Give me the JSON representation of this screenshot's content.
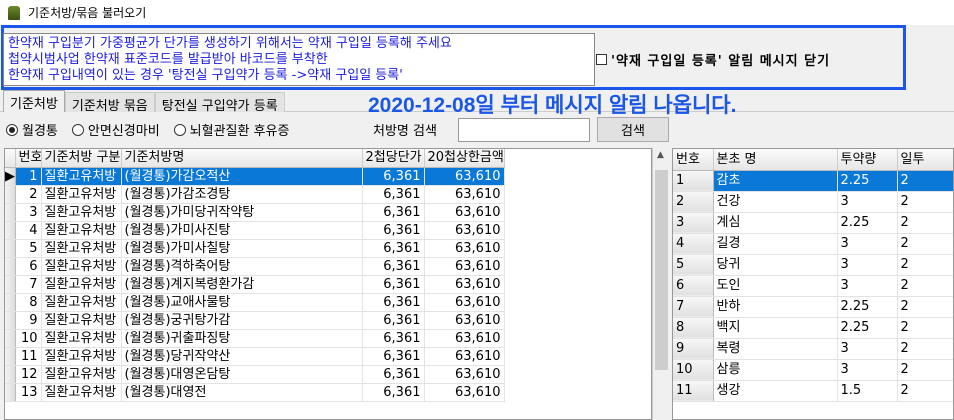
{
  "window": {
    "title": "기준처방/묶음 불러오기"
  },
  "notice": {
    "lines": [
      "한약재 구입분기 가중평균가 단가를 생성하기 위해서는 약재 구입일 등록해 주세요",
      "첩약시범사업 한약재 표준코드를 발급받아 바코드를 부착한",
      "한약재 구입내역이 있는 경우 '탕전실 구입약가 등록 ->약재 구입일 등록'"
    ],
    "close_checkbox_label": "'약재 구입일 등록' 알림 메시지 닫기",
    "close_checked": false,
    "accent_color": "#1a56e8"
  },
  "tabs": [
    {
      "label": "기준처방",
      "active": true
    },
    {
      "label": "기준처방 묶음",
      "active": false
    },
    {
      "label": "탕전실 구입약가 등록",
      "active": false
    }
  ],
  "banner": "2020-12-08일 부터 메시지 알림 나옵니다.",
  "filters": {
    "options": [
      {
        "label": "월경통",
        "selected": true
      },
      {
        "label": "안면신경마비",
        "selected": false
      },
      {
        "label": "뇌혈관질환 후유증",
        "selected": false
      }
    ],
    "search_label": "처방명 검색",
    "search_value": "",
    "search_button": "검색"
  },
  "left_grid": {
    "columns": [
      "번호",
      "기준처방 구분",
      "기준처방명",
      "2첩당단가",
      "20첩상한금액"
    ],
    "rows": [
      [
        "1",
        "질환고유처방",
        "(월경통)가감오적산",
        "6,361",
        "63,610"
      ],
      [
        "2",
        "질환고유처방",
        "(월경통)가감조경탕",
        "6,361",
        "63,610"
      ],
      [
        "3",
        "질환고유처방",
        "(월경통)가미당귀작약탕",
        "6,361",
        "63,610"
      ],
      [
        "4",
        "질환고유처방",
        "(월경통)가미사진탕",
        "6,361",
        "63,610"
      ],
      [
        "5",
        "질환고유처방",
        "(월경통)가미사칠탕",
        "6,361",
        "63,610"
      ],
      [
        "6",
        "질환고유처방",
        "(월경통)격하축어탕",
        "6,361",
        "63,610"
      ],
      [
        "7",
        "질환고유처방",
        "(월경통)계지복령환가감",
        "6,361",
        "63,610"
      ],
      [
        "8",
        "질환고유처방",
        "(월경통)교애사물탕",
        "6,361",
        "63,610"
      ],
      [
        "9",
        "질환고유처방",
        "(월경통)궁귀탕가감",
        "6,361",
        "63,610"
      ],
      [
        "10",
        "질환고유처방",
        "(월경통)귀출파징탕",
        "6,361",
        "63,610"
      ],
      [
        "11",
        "질환고유처방",
        "(월경통)당귀작약산",
        "6,361",
        "63,610"
      ],
      [
        "12",
        "질환고유처방",
        "(월경통)대영온담탕",
        "6,361",
        "63,610"
      ],
      [
        "13",
        "질환고유처방",
        "(월경통)대영전",
        "6,361",
        "63,610"
      ]
    ],
    "selected_row": 0
  },
  "right_grid": {
    "columns": [
      "번호",
      "본초 명",
      "투약량",
      "일투"
    ],
    "rows": [
      [
        "1",
        "감초",
        "2.25",
        "2"
      ],
      [
        "2",
        "건강",
        "3",
        "2"
      ],
      [
        "3",
        "계심",
        "2.25",
        "2"
      ],
      [
        "4",
        "길경",
        "3",
        "2"
      ],
      [
        "5",
        "당귀",
        "3",
        "2"
      ],
      [
        "6",
        "도인",
        "3",
        "2"
      ],
      [
        "7",
        "반하",
        "2.25",
        "2"
      ],
      [
        "8",
        "백지",
        "2.25",
        "2"
      ],
      [
        "9",
        "복령",
        "3",
        "2"
      ],
      [
        "10",
        "삼릉",
        "3",
        "2"
      ],
      [
        "11",
        "생강",
        "1.5",
        "2"
      ]
    ],
    "selected_row": 0
  }
}
